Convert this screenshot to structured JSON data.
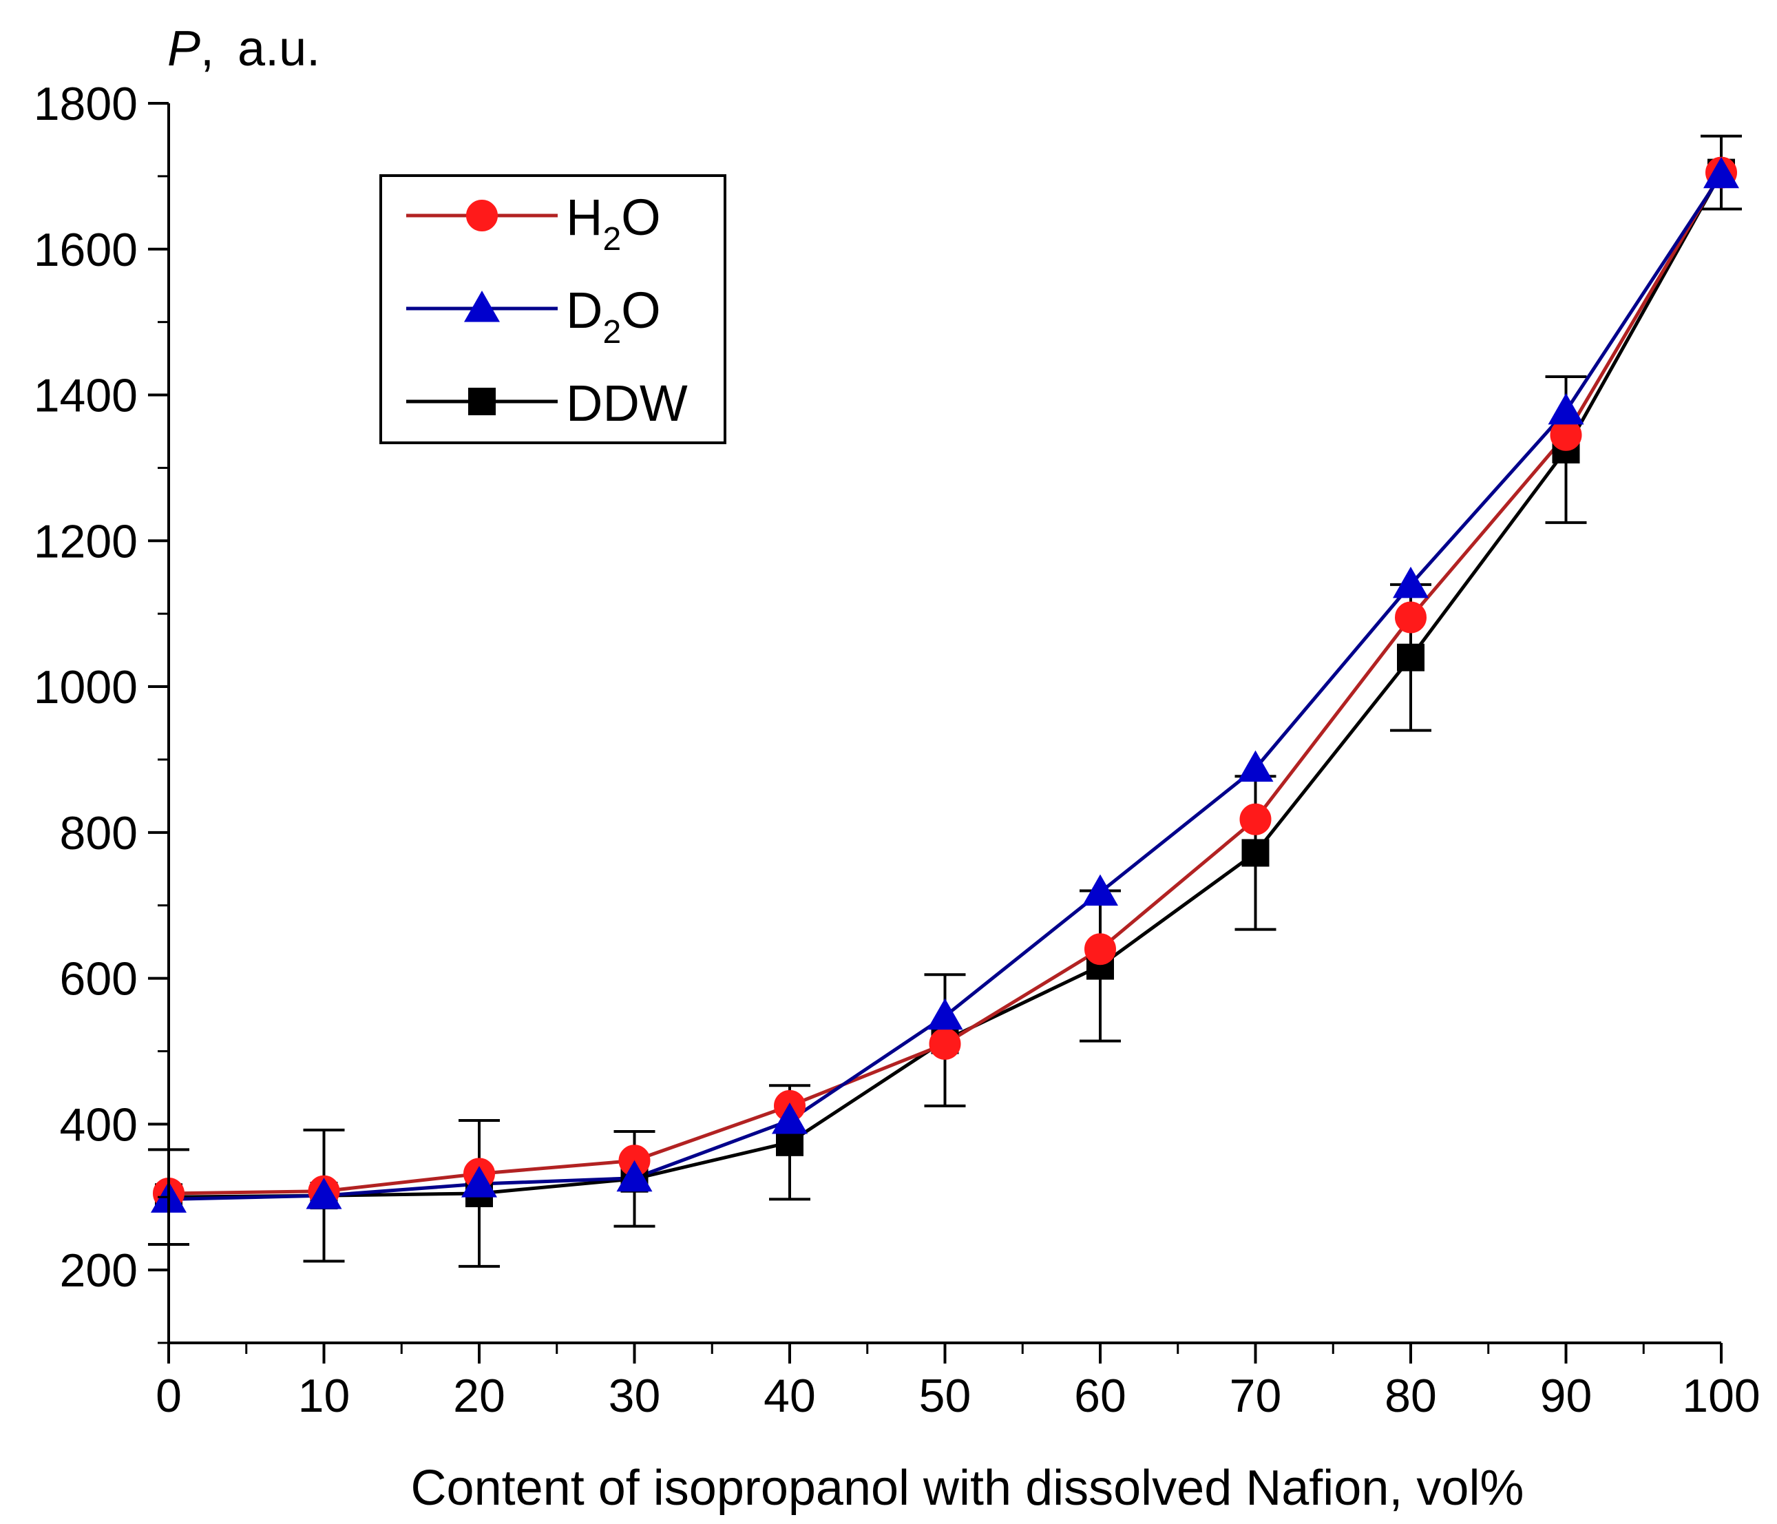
{
  "chart_data": {
    "type": "line",
    "xlabel": "Content of isopropanol with dissolved Nafion, vol%",
    "ylabel_var": "P",
    "ylabel_unit": "a.u.",
    "xlim": [
      0,
      100
    ],
    "ylim": [
      100,
      1800
    ],
    "x_ticks": [
      0,
      10,
      20,
      30,
      40,
      50,
      60,
      70,
      80,
      90,
      100
    ],
    "y_ticks": [
      200,
      400,
      600,
      800,
      1000,
      1200,
      1400,
      1600,
      1800
    ],
    "x": [
      0,
      10,
      20,
      30,
      40,
      50,
      60,
      70,
      80,
      90,
      100
    ],
    "legend_position": "top-left",
    "series": [
      {
        "name": "H2O",
        "label_main": "H",
        "label_sub": "2",
        "label_tail": "O",
        "marker": "circle",
        "color": "#b22222",
        "marker_color": "#ff1a1a",
        "values": [
          305,
          308,
          332,
          350,
          425,
          510,
          640,
          818,
          1095,
          1345,
          1705
        ]
      },
      {
        "name": "D2O",
        "label_main": "D",
        "label_sub": "2",
        "label_tail": "O",
        "marker": "triangle",
        "color": "#00008b",
        "marker_color": "#0000cd",
        "values": [
          297,
          302,
          318,
          326,
          405,
          548,
          718,
          888,
          1140,
          1378,
          1702
        ]
      },
      {
        "name": "DDW",
        "label_main": "DDW",
        "label_sub": "",
        "label_tail": "",
        "marker": "square",
        "color": "#000000",
        "marker_color": "#000000",
        "values": [
          300,
          302,
          305,
          325,
          375,
          515,
          617,
          772,
          1040,
          1325,
          1705
        ],
        "error": [
          65,
          90,
          100,
          65,
          78,
          90,
          103,
          105,
          100,
          100,
          50
        ]
      }
    ]
  }
}
